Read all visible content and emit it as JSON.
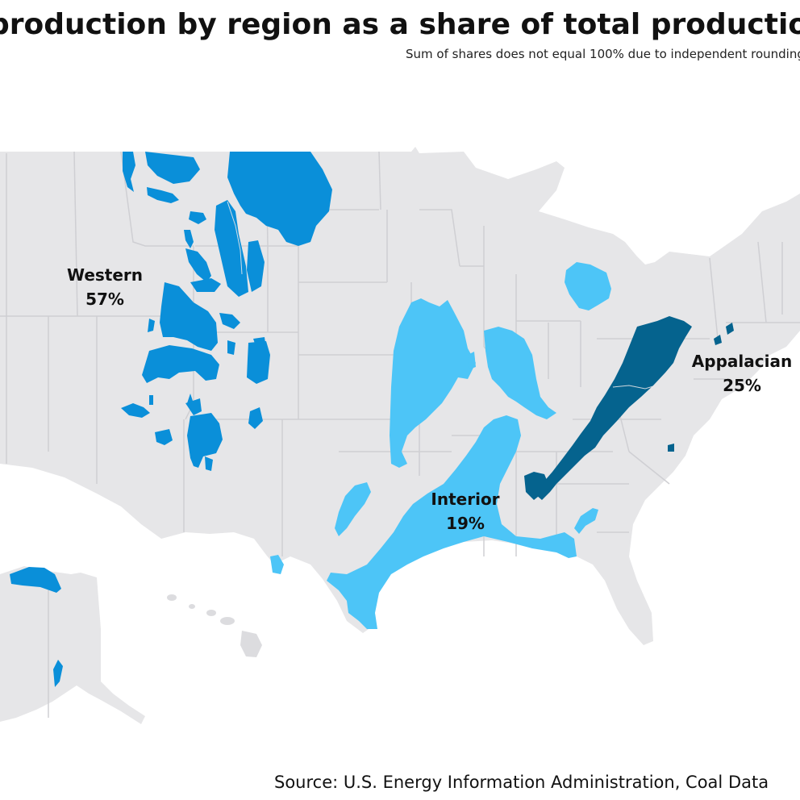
{
  "title": "production by region as a share of total production",
  "subtitle": "Sum of shares does not equal 100% due to independent rounding",
  "source": "Source: U.S. Energy Information Administration, Coal Data",
  "regions": [
    {
      "name": "Western",
      "share": "57%",
      "color": "#0a8fd9"
    },
    {
      "name": "Interior",
      "share": "19%",
      "color": "#4dc5f7"
    },
    {
      "name": "Appalacian",
      "share": "25%",
      "color": "#05638e"
    }
  ],
  "colors": {
    "land": "#e6e6e8",
    "borders": "#cfcfd3",
    "background": "#ffffff"
  }
}
